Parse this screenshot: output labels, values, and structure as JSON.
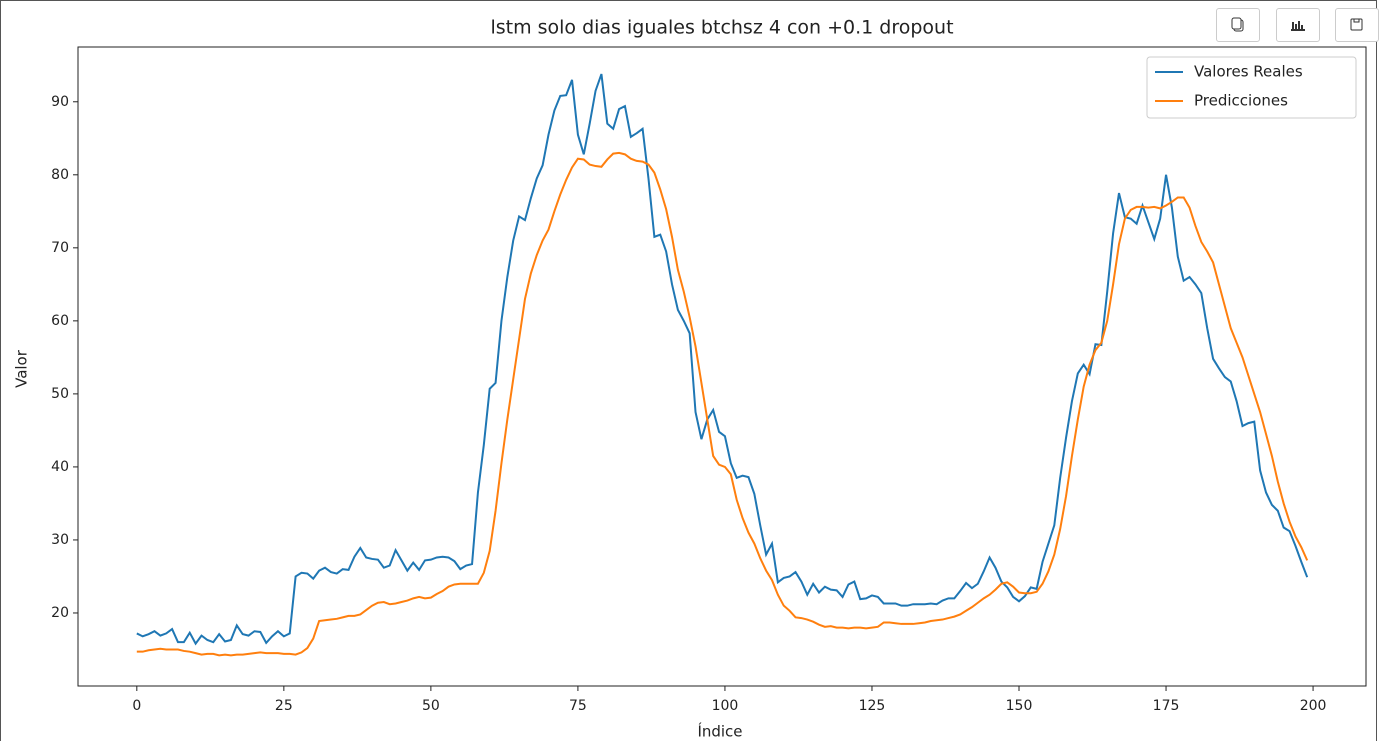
{
  "chart_data": {
    "type": "line",
    "title": "lstm solo dias iguales btchsz 4 con +0.1 dropout",
    "x_label": "Índice",
    "y_label": "Valor",
    "x": [
      0,
      1,
      2,
      3,
      4,
      5,
      6,
      7,
      8,
      9,
      10,
      11,
      12,
      13,
      14,
      15,
      16,
      17,
      18,
      19,
      20,
      21,
      22,
      23,
      24,
      25,
      26,
      27,
      28,
      29,
      30,
      31,
      32,
      33,
      34,
      35,
      36,
      37,
      38,
      39,
      40,
      41,
      42,
      43,
      44,
      45,
      46,
      47,
      48,
      49,
      50,
      51,
      52,
      53,
      54,
      55,
      56,
      57,
      58,
      59,
      60,
      61,
      62,
      63,
      64,
      65,
      66,
      67,
      68,
      69,
      70,
      71,
      72,
      73,
      74,
      75,
      76,
      77,
      78,
      79,
      80,
      81,
      82,
      83,
      84,
      85,
      86,
      87,
      88,
      89,
      90,
      91,
      92,
      93,
      94,
      95,
      96,
      97,
      98,
      99,
      100,
      101,
      102,
      103,
      104,
      105,
      106,
      107,
      108,
      109,
      110,
      111,
      112,
      113,
      114,
      115,
      116,
      117,
      118,
      119,
      120,
      121,
      122,
      123,
      124,
      125,
      126,
      127,
      128,
      129,
      130,
      131,
      132,
      133,
      134,
      135,
      136,
      137,
      138,
      139,
      140,
      141,
      142,
      143,
      144,
      145,
      146,
      147,
      148,
      149,
      150,
      151,
      152,
      153,
      154,
      155,
      156,
      157,
      158,
      159,
      160,
      161,
      162,
      163,
      164,
      165,
      166,
      167,
      168,
      169,
      170,
      171,
      172,
      173,
      174,
      175,
      176,
      177,
      178,
      179,
      180,
      181,
      182,
      183,
      184,
      185,
      186,
      187,
      188,
      189,
      190,
      191,
      192,
      193,
      194,
      195,
      196,
      197,
      198,
      199
    ],
    "series": [
      {
        "name": "Valores Reales",
        "color": "#1f77b4",
        "values": [
          17.2,
          16.8,
          17.1,
          17.5,
          16.9,
          17.2,
          17.8,
          16.0,
          16.0,
          17.3,
          15.8,
          16.9,
          16.3,
          16.0,
          17.1,
          16.1,
          16.3,
          18.3,
          17.1,
          16.9,
          17.5,
          17.4,
          15.9,
          16.8,
          17.5,
          16.8,
          17.2,
          25.0,
          25.5,
          25.4,
          24.7,
          25.8,
          26.2,
          25.6,
          25.4,
          26.0,
          25.9,
          27.7,
          28.9,
          27.6,
          27.4,
          27.3,
          26.2,
          26.5,
          28.6,
          27.2,
          25.8,
          26.9,
          25.9,
          27.2,
          27.3,
          27.6,
          27.7,
          27.6,
          27.1,
          26.0,
          26.5,
          26.7,
          36.5,
          43.0,
          50.7,
          51.5,
          60.0,
          66.0,
          71.0,
          74.3,
          73.8,
          76.8,
          79.5,
          81.3,
          85.5,
          88.8,
          90.8,
          90.9,
          93.0,
          85.5,
          82.8,
          87.0,
          91.5,
          93.8,
          87.0,
          86.3,
          89.0,
          89.4,
          85.2,
          85.7,
          86.3,
          79.5,
          71.5,
          71.8,
          69.5,
          65.0,
          61.5,
          60.0,
          58.3,
          47.5,
          43.8,
          46.5,
          47.8,
          44.8,
          44.2,
          40.5,
          38.5,
          38.8,
          38.6,
          36.3,
          32.0,
          28.0,
          29.5,
          24.2,
          24.8,
          25.0,
          25.6,
          24.3,
          22.5,
          24.0,
          22.8,
          23.6,
          23.2,
          23.1,
          22.2,
          23.9,
          24.3,
          21.9,
          22.0,
          22.4,
          22.2,
          21.3,
          21.3,
          21.3,
          21.0,
          21.0,
          21.2,
          21.2,
          21.2,
          21.3,
          21.2,
          21.7,
          22.0,
          22.0,
          23.0,
          24.1,
          23.4,
          24.0,
          25.7,
          27.6,
          26.2,
          24.3,
          23.5,
          22.2,
          21.6,
          22.3,
          23.5,
          23.3,
          27.0,
          29.5,
          32.0,
          38.5,
          44.0,
          49.0,
          52.8,
          54.0,
          52.7,
          56.8,
          56.7,
          64.0,
          72.0,
          77.5,
          74.2,
          74.0,
          73.3,
          75.8,
          73.5,
          71.2,
          74.0,
          80.0,
          75.5,
          68.8,
          65.5,
          66.0,
          65.0,
          63.8,
          59.0,
          54.8,
          53.5,
          52.3,
          51.7,
          49.0,
          45.6,
          46.0,
          46.2,
          39.5,
          36.5,
          34.8,
          34.0,
          31.7,
          31.2,
          29.2,
          27.0,
          24.9
        ]
      },
      {
        "name": "Predicciones",
        "color": "#ff7f0e",
        "values": [
          14.7,
          14.7,
          14.9,
          15.0,
          15.1,
          15.0,
          15.0,
          15.0,
          14.8,
          14.7,
          14.5,
          14.3,
          14.4,
          14.4,
          14.2,
          14.3,
          14.2,
          14.3,
          14.3,
          14.4,
          14.5,
          14.6,
          14.5,
          14.5,
          14.5,
          14.4,
          14.4,
          14.3,
          14.6,
          15.2,
          16.5,
          18.9,
          19.0,
          19.1,
          19.2,
          19.4,
          19.6,
          19.6,
          19.8,
          20.4,
          21.0,
          21.4,
          21.5,
          21.2,
          21.3,
          21.5,
          21.7,
          22.0,
          22.2,
          22.0,
          22.1,
          22.6,
          23.0,
          23.6,
          23.9,
          24.0,
          24.0,
          24.0,
          24.0,
          25.5,
          28.5,
          34.0,
          40.5,
          46.5,
          52.0,
          57.5,
          63.0,
          66.5,
          69.0,
          71.0,
          72.5,
          75.0,
          77.3,
          79.3,
          81.0,
          82.2,
          82.1,
          81.4,
          81.2,
          81.1,
          82.1,
          82.9,
          83.0,
          82.8,
          82.2,
          81.9,
          81.8,
          81.4,
          80.3,
          78.0,
          75.3,
          71.5,
          67.0,
          64.0,
          60.5,
          56.5,
          51.5,
          46.5,
          41.5,
          40.3,
          40.0,
          39.0,
          35.5,
          33.0,
          31.0,
          29.5,
          27.5,
          25.8,
          24.5,
          22.5,
          21.0,
          20.3,
          19.4,
          19.3,
          19.1,
          18.8,
          18.4,
          18.1,
          18.2,
          18.0,
          18.0,
          17.9,
          18.0,
          18.0,
          17.9,
          18.0,
          18.1,
          18.7,
          18.7,
          18.6,
          18.5,
          18.5,
          18.5,
          18.6,
          18.7,
          18.9,
          19.0,
          19.1,
          19.3,
          19.5,
          19.8,
          20.3,
          20.8,
          21.4,
          22.0,
          22.5,
          23.2,
          24.0,
          24.2,
          23.6,
          22.8,
          22.7,
          22.7,
          22.9,
          24.0,
          25.7,
          28.0,
          31.5,
          36.0,
          41.5,
          46.5,
          51.0,
          54.0,
          56.0,
          57.0,
          60.0,
          65.0,
          70.5,
          74.0,
          75.2,
          75.6,
          75.6,
          75.5,
          75.6,
          75.4,
          75.8,
          76.3,
          76.9,
          76.9,
          75.5,
          73.0,
          70.8,
          69.5,
          68.0,
          65.0,
          62.0,
          59.0,
          57.0,
          55.0,
          52.5,
          50.0,
          47.5,
          44.5,
          41.5,
          38.0,
          35.0,
          32.5,
          30.5,
          29.0,
          27.2
        ]
      }
    ],
    "xlim": [
      -10,
      209
    ],
    "ylim": [
      10,
      97.5
    ],
    "xticks": [
      0,
      25,
      50,
      75,
      100,
      125,
      150,
      175,
      200
    ],
    "yticks": [
      20,
      30,
      40,
      50,
      60,
      70,
      80,
      90
    ],
    "legend": "upper right",
    "grid": false
  }
}
